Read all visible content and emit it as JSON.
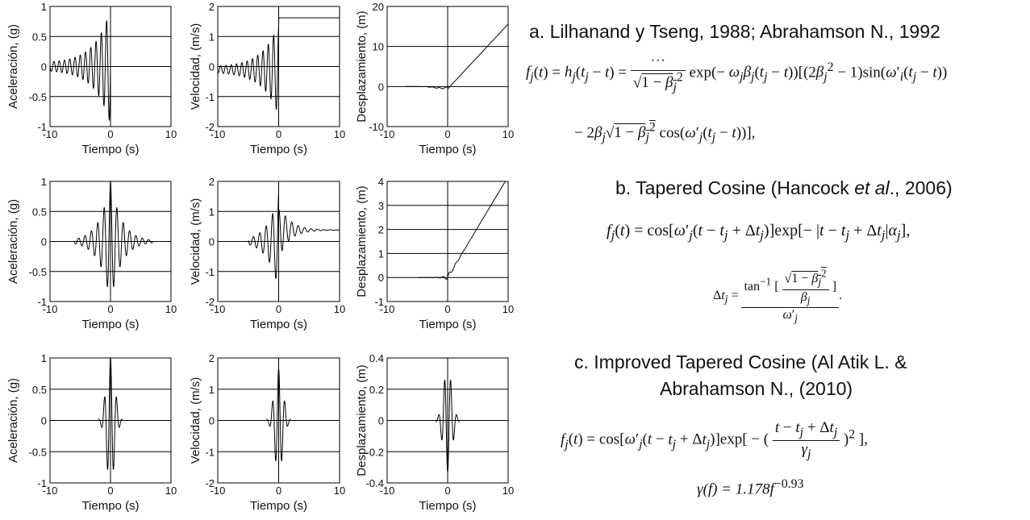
{
  "chart_data": [
    {
      "id": "a-acc",
      "type": "line",
      "ylabel": "Aceleración, (g)",
      "xlabel": "Tiempo (s)",
      "xlim": [
        -10,
        10
      ],
      "ylim": [
        -1,
        1
      ],
      "xticks": [
        -10,
        0,
        10
      ],
      "yticks": [
        1,
        0.5,
        0,
        -0.5,
        -1
      ],
      "ytick_labels": [
        "1",
        "0.5",
        "0",
        "-0.5",
        "-1"
      ],
      "grid": true
    },
    {
      "id": "a-vel",
      "type": "line",
      "ylabel": "Velocidad, (m/s)",
      "xlabel": "Tiempo (s)",
      "xlim": [
        -10,
        10
      ],
      "ylim": [
        -2,
        2
      ],
      "xticks": [
        -10,
        0,
        10
      ],
      "yticks": [
        2,
        1,
        0,
        -1,
        -2
      ],
      "ytick_labels": [
        "2",
        "1",
        "0",
        "-1",
        "-2"
      ],
      "grid": true
    },
    {
      "id": "a-disp",
      "type": "line",
      "ylabel": "Desplazamiento, (m)",
      "xlabel": "Tiempo (s)",
      "xlim": [
        -10,
        10
      ],
      "ylim": [
        -10,
        20
      ],
      "xticks": [
        -10,
        0,
        10
      ],
      "yticks": [
        20,
        10,
        0,
        -10
      ],
      "ytick_labels": [
        "20",
        "10",
        "0",
        "-10"
      ],
      "grid": true
    },
    {
      "id": "b-acc",
      "type": "line",
      "ylabel": "Aceleración, (g)",
      "xlabel": "Tiempo (s)",
      "xlim": [
        -10,
        10
      ],
      "ylim": [
        -1,
        1
      ],
      "xticks": [
        -10,
        0,
        10
      ],
      "yticks": [
        1,
        0.5,
        0,
        -0.5,
        -1
      ],
      "ytick_labels": [
        "1",
        "0.5",
        "0",
        "-0.5",
        "-1"
      ],
      "grid": true
    },
    {
      "id": "b-vel",
      "type": "line",
      "ylabel": "Velocidad, (m/s)",
      "xlabel": "Tiempo (s)",
      "xlim": [
        -10,
        10
      ],
      "ylim": [
        -2,
        2
      ],
      "xticks": [
        -10,
        0,
        10
      ],
      "yticks": [
        2,
        1,
        0,
        -1,
        -2
      ],
      "ytick_labels": [
        "2",
        "1",
        "0",
        "-1",
        "-2"
      ],
      "grid": true
    },
    {
      "id": "b-disp",
      "type": "line",
      "ylabel": "Desplazamiento, (m)",
      "xlabel": "Tiempo (s)",
      "xlim": [
        -10,
        10
      ],
      "ylim": [
        -1,
        4
      ],
      "xticks": [
        -10,
        0,
        10
      ],
      "yticks": [
        4,
        3,
        2,
        1,
        0,
        -1
      ],
      "ytick_labels": [
        "4",
        "3",
        "2",
        "1",
        "0",
        "-1"
      ],
      "grid": true
    },
    {
      "id": "c-acc",
      "type": "line",
      "ylabel": "Aceleración, (g)",
      "xlabel": "Tiempo (s)",
      "xlim": [
        -10,
        10
      ],
      "ylim": [
        -1,
        1
      ],
      "xticks": [
        -10,
        0,
        10
      ],
      "yticks": [
        1,
        0.5,
        0,
        -0.5,
        -1
      ],
      "ytick_labels": [
        "1",
        "0.5",
        "0",
        "-0.5",
        "-1"
      ],
      "grid": true
    },
    {
      "id": "c-vel",
      "type": "line",
      "ylabel": "Velocidad, (m/s)",
      "xlabel": "Tiempo (s)",
      "xlim": [
        -10,
        10
      ],
      "ylim": [
        -2,
        2
      ],
      "xticks": [
        -10,
        0,
        10
      ],
      "yticks": [
        2,
        1,
        0,
        -1,
        -2
      ],
      "ytick_labels": [
        "2",
        "1",
        "0",
        "-1",
        "-2"
      ],
      "grid": true
    },
    {
      "id": "c-disp",
      "type": "line",
      "ylabel": "Desplazamiento, (m)",
      "xlabel": "Tiempo (s)",
      "xlim": [
        -10,
        10
      ],
      "ylim": [
        -0.4,
        0.4
      ],
      "xticks": [
        -10,
        0,
        10
      ],
      "yticks": [
        0.4,
        0.2,
        0,
        -0.2,
        -0.4
      ],
      "ytick_labels": [
        "0.4",
        "0.2",
        "0",
        "-0.2",
        "-0.4"
      ],
      "grid": true
    }
  ],
  "headings": {
    "a": "a. Lilhanand y Tseng, 1988; Abrahamson N., 1992",
    "b_prefix": "b. Tapered Cosine (Hancock ",
    "b_italic": "et al",
    "b_suffix": "., 2006)",
    "c_line1": "c. Improved Tapered Cosine (Al Atik L. &",
    "c_line2": "Abrahamson N., (2010)"
  },
  "equations": {
    "a_line1_lhs": "f",
    "c_gamma": "γ(f) = 1.178f"
  },
  "colors": {
    "line": "#000000",
    "grid": "#000000",
    "text": "#111111"
  }
}
